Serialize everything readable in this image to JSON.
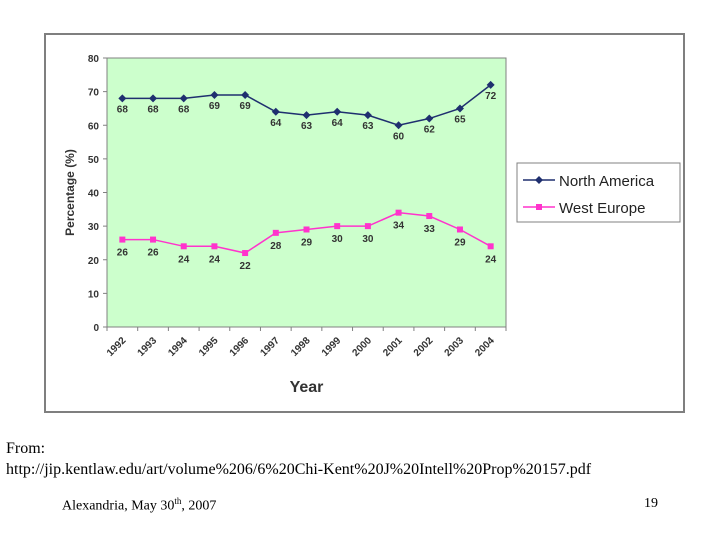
{
  "source": {
    "prefix": "From:",
    "url": "http://jip.kentlaw.edu/art/volume%206/6%20Chi-Kent%20J%20Intell%20Prop%20157.pdf"
  },
  "footer": {
    "place_date": "Alexandria, May 30",
    "date_sup": "th",
    "year": ", 2007",
    "page_number": "19"
  },
  "chart_data": {
    "type": "line",
    "title": "",
    "xlabel": "Year",
    "ylabel": "Percentage (%)",
    "ylim": [
      0,
      80
    ],
    "yticks": [
      0,
      10,
      20,
      30,
      40,
      50,
      60,
      70,
      80
    ],
    "grid": false,
    "legend_position": "right",
    "plot_background": "#ccffcc",
    "x": [
      "1992",
      "1993",
      "1994",
      "1995",
      "1996",
      "1997",
      "1998",
      "1999",
      "2000",
      "2001",
      "2002",
      "2003",
      "2004"
    ],
    "series": [
      {
        "name": "North America",
        "color": "#1f2f6f",
        "marker": "diamond",
        "values": [
          68,
          68,
          68,
          69,
          69,
          64,
          63,
          64,
          63,
          60,
          62,
          65,
          72
        ]
      },
      {
        "name": "West Europe",
        "color": "#ff33cc",
        "marker": "square",
        "values": [
          26,
          26,
          24,
          24,
          22,
          28,
          29,
          30,
          30,
          34,
          33,
          29,
          24
        ]
      }
    ]
  }
}
